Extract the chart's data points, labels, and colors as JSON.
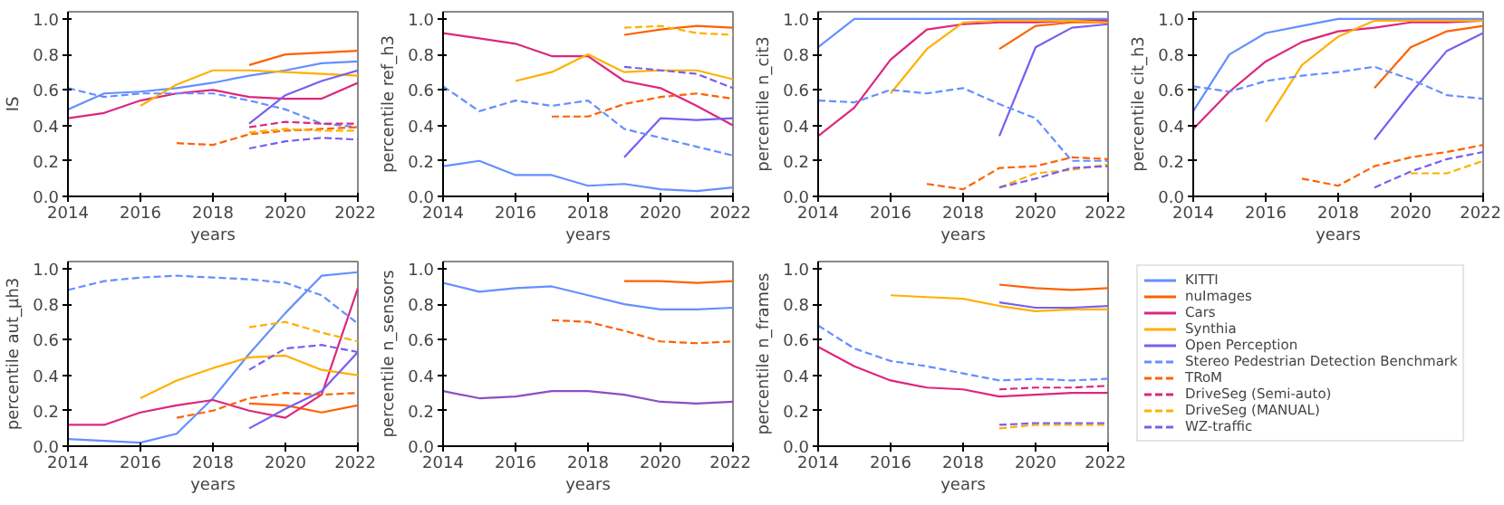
{
  "chart_data": [
    {
      "type": "line",
      "x": [
        2014,
        2015,
        2016,
        2017,
        2018,
        2019,
        2020,
        2021,
        2022
      ],
      "xlim": [
        2014,
        2022
      ],
      "xticks": [
        2014,
        2016,
        2018,
        2020,
        2022
      ],
      "ylim": [
        0,
        1.04
      ],
      "yticks": [
        {
          "value": 0,
          "label": "0.0"
        },
        {
          "value": 0.2,
          "label": "0.2"
        },
        {
          "value": 0.4,
          "label": "0.4"
        },
        {
          "value": 0.6,
          "label": "0.6"
        },
        {
          "value": 0.8,
          "label": "0.8"
        },
        {
          "value": 1,
          "label": "1.0"
        }
      ],
      "xlabel": "years",
      "ylabel": "IS",
      "series": [
        {
          "color": "#648fff",
          "line_style": "solid",
          "values": [
            0.49,
            0.58,
            0.59,
            0.61,
            0.64,
            0.68,
            0.71,
            0.75,
            0.76
          ]
        },
        {
          "color": "#fe6100",
          "line_style": "solid",
          "values": [
            null,
            null,
            null,
            null,
            null,
            0.74,
            0.8,
            0.81,
            0.82
          ]
        },
        {
          "color": "#dc267f",
          "line_style": "solid",
          "values": [
            0.44,
            0.47,
            0.54,
            0.58,
            0.6,
            0.56,
            0.55,
            0.55,
            0.64
          ]
        },
        {
          "color": "#ffb000",
          "line_style": "solid",
          "values": [
            null,
            null,
            0.51,
            0.63,
            0.71,
            0.71,
            0.7,
            0.69,
            0.68
          ]
        },
        {
          "color": "#785ef0",
          "line_style": "solid",
          "values": [
            null,
            null,
            null,
            null,
            null,
            0.41,
            0.57,
            0.65,
            0.71
          ]
        },
        {
          "color": "#648fff",
          "line_style": "dashed",
          "values": [
            0.61,
            0.56,
            0.58,
            0.58,
            0.58,
            0.54,
            0.49,
            0.41,
            0.39
          ]
        },
        {
          "color": "#fe6100",
          "line_style": "dashed",
          "values": [
            null,
            null,
            null,
            0.3,
            0.29,
            0.35,
            0.37,
            0.38,
            0.39
          ]
        },
        {
          "color": "#dc267f",
          "line_style": "dashed",
          "values": [
            null,
            null,
            null,
            null,
            null,
            0.39,
            0.42,
            0.41,
            0.41
          ]
        },
        {
          "color": "#ffb000",
          "line_style": "dashed",
          "values": [
            null,
            null,
            null,
            null,
            null,
            0.36,
            0.38,
            0.37,
            0.37
          ]
        },
        {
          "color": "#785ef0",
          "line_style": "dashed",
          "values": [
            null,
            null,
            null,
            null,
            null,
            0.27,
            0.31,
            0.33,
            0.32
          ]
        }
      ]
    },
    {
      "type": "line",
      "x": [
        2014,
        2015,
        2016,
        2017,
        2018,
        2019,
        2020,
        2021,
        2022
      ],
      "xlim": [
        2014,
        2022
      ],
      "xticks": [
        2014,
        2016,
        2018,
        2020,
        2022
      ],
      "ylim": [
        0,
        1.04
      ],
      "yticks": [
        {
          "value": 0,
          "label": "0.0"
        },
        {
          "value": 0.2,
          "label": "0.2"
        },
        {
          "value": 0.4,
          "label": "0.4"
        },
        {
          "value": 0.6,
          "label": "0.6"
        },
        {
          "value": 0.8,
          "label": "0.8"
        },
        {
          "value": 1,
          "label": "1.0"
        }
      ],
      "xlabel": "years",
      "ylabel": "percentile ref_h3",
      "series": [
        {
          "color": "#648fff",
          "line_style": "solid",
          "values": [
            0.17,
            0.2,
            0.12,
            0.12,
            0.06,
            0.07,
            0.04,
            0.03,
            0.05
          ]
        },
        {
          "color": "#fe6100",
          "line_style": "solid",
          "values": [
            null,
            null,
            null,
            null,
            null,
            0.91,
            0.94,
            0.96,
            0.95
          ]
        },
        {
          "color": "#dc267f",
          "line_style": "solid",
          "values": [
            0.92,
            0.89,
            0.86,
            0.79,
            0.79,
            0.65,
            0.61,
            0.51,
            0.4
          ]
        },
        {
          "color": "#ffb000",
          "line_style": "solid",
          "values": [
            null,
            null,
            0.65,
            0.7,
            0.8,
            0.7,
            0.71,
            0.71,
            0.66
          ]
        },
        {
          "color": "#785ef0",
          "line_style": "solid",
          "values": [
            null,
            null,
            null,
            null,
            null,
            0.22,
            0.44,
            0.43,
            0.44
          ]
        },
        {
          "color": "#648fff",
          "line_style": "dashed",
          "values": [
            0.62,
            0.48,
            0.54,
            0.51,
            0.54,
            0.38,
            0.33,
            0.28,
            0.23
          ]
        },
        {
          "color": "#fe6100",
          "line_style": "dashed",
          "values": [
            null,
            null,
            null,
            0.45,
            0.45,
            0.52,
            0.56,
            0.58,
            0.55
          ]
        },
        {
          "color": "#ffb000",
          "line_style": "dashed",
          "values": [
            null,
            null,
            null,
            null,
            null,
            0.95,
            0.96,
            0.92,
            0.91
          ]
        },
        {
          "color": "#785ef0",
          "line_style": "dashed",
          "values": [
            null,
            null,
            null,
            null,
            null,
            0.73,
            0.71,
            0.69,
            0.61
          ]
        }
      ]
    },
    {
      "type": "line",
      "x": [
        2014,
        2015,
        2016,
        2017,
        2018,
        2019,
        2020,
        2021,
        2022
      ],
      "xlim": [
        2014,
        2022
      ],
      "xticks": [
        2014,
        2016,
        2018,
        2020,
        2022
      ],
      "ylim": [
        0,
        1.04
      ],
      "yticks": [
        {
          "value": 0,
          "label": "0.0"
        },
        {
          "value": 0.2,
          "label": "0.2"
        },
        {
          "value": 0.4,
          "label": "0.4"
        },
        {
          "value": 0.6,
          "label": "0.6"
        },
        {
          "value": 0.8,
          "label": "0.8"
        },
        {
          "value": 1,
          "label": "1.0"
        }
      ],
      "xlabel": "years",
      "ylabel": "percentile n_cit3",
      "series": [
        {
          "color": "#648fff",
          "line_style": "solid",
          "values": [
            0.84,
            1.0,
            1.0,
            1.0,
            1.0,
            1.0,
            1.0,
            1.0,
            1.0
          ]
        },
        {
          "color": "#fe6100",
          "line_style": "solid",
          "values": [
            null,
            null,
            null,
            null,
            null,
            0.83,
            0.96,
            0.98,
            0.98
          ]
        },
        {
          "color": "#dc267f",
          "line_style": "solid",
          "values": [
            0.34,
            0.5,
            0.77,
            0.94,
            0.97,
            0.98,
            0.98,
            0.99,
            0.99
          ]
        },
        {
          "color": "#ffb000",
          "line_style": "solid",
          "values": [
            null,
            null,
            0.58,
            0.83,
            0.98,
            0.99,
            0.99,
            0.99,
            0.98
          ]
        },
        {
          "color": "#785ef0",
          "line_style": "solid",
          "values": [
            null,
            null,
            null,
            null,
            null,
            0.34,
            0.84,
            0.95,
            0.97
          ]
        },
        {
          "color": "#648fff",
          "line_style": "dashed",
          "values": [
            0.54,
            0.53,
            0.6,
            0.58,
            0.61,
            0.52,
            0.44,
            0.2,
            0.2
          ]
        },
        {
          "color": "#fe6100",
          "line_style": "dashed",
          "values": [
            null,
            null,
            null,
            0.07,
            0.04,
            0.16,
            0.17,
            0.22,
            0.21
          ]
        },
        {
          "color": "#ffb000",
          "line_style": "dashed",
          "values": [
            null,
            null,
            null,
            null,
            null,
            0.05,
            0.13,
            0.15,
            0.18
          ]
        },
        {
          "color": "#785ef0",
          "line_style": "dashed",
          "values": [
            null,
            null,
            null,
            null,
            null,
            0.05,
            0.1,
            0.16,
            0.17
          ]
        }
      ]
    },
    {
      "type": "line",
      "x": [
        2014,
        2015,
        2016,
        2017,
        2018,
        2019,
        2020,
        2021,
        2022
      ],
      "xlim": [
        2014,
        2022
      ],
      "xticks": [
        2014,
        2016,
        2018,
        2020,
        2022
      ],
      "ylim": [
        0,
        1.04
      ],
      "yticks": [
        {
          "value": 0,
          "label": "0.0"
        },
        {
          "value": 0.2,
          "label": "0.2"
        },
        {
          "value": 0.4,
          "label": "0.4"
        },
        {
          "value": 0.6,
          "label": "0.6"
        },
        {
          "value": 0.8,
          "label": "0.8"
        },
        {
          "value": 1,
          "label": "1.0"
        }
      ],
      "xlabel": "years",
      "ylabel": "percentile cit_h3",
      "series": [
        {
          "color": "#648fff",
          "line_style": "solid",
          "values": [
            0.48,
            0.8,
            0.92,
            0.96,
            1.0,
            1.0,
            1.0,
            1.0,
            1.0
          ]
        },
        {
          "color": "#fe6100",
          "line_style": "solid",
          "values": [
            null,
            null,
            null,
            null,
            null,
            0.61,
            0.84,
            0.93,
            0.96
          ]
        },
        {
          "color": "#dc267f",
          "line_style": "solid",
          "values": [
            0.38,
            0.59,
            0.76,
            0.87,
            0.93,
            0.95,
            0.98,
            0.98,
            0.99
          ]
        },
        {
          "color": "#ffb000",
          "line_style": "solid",
          "values": [
            null,
            null,
            0.42,
            0.74,
            0.9,
            0.99,
            0.99,
            0.99,
            0.99
          ]
        },
        {
          "color": "#785ef0",
          "line_style": "solid",
          "values": [
            null,
            null,
            null,
            null,
            null,
            0.32,
            0.58,
            0.82,
            0.92
          ]
        },
        {
          "color": "#648fff",
          "line_style": "dashed",
          "values": [
            0.62,
            0.59,
            0.65,
            0.68,
            0.7,
            0.73,
            0.66,
            0.57,
            0.55
          ]
        },
        {
          "color": "#fe6100",
          "line_style": "dashed",
          "values": [
            null,
            null,
            null,
            0.1,
            0.06,
            0.17,
            0.22,
            0.25,
            0.29
          ]
        },
        {
          "color": "#ffb000",
          "line_style": "dashed",
          "values": [
            null,
            null,
            null,
            null,
            null,
            null,
            0.13,
            0.13,
            0.2
          ]
        },
        {
          "color": "#785ef0",
          "line_style": "dashed",
          "values": [
            null,
            null,
            null,
            null,
            null,
            0.05,
            0.14,
            0.21,
            0.25
          ]
        }
      ]
    },
    {
      "type": "line",
      "x": [
        2014,
        2015,
        2016,
        2017,
        2018,
        2019,
        2020,
        2021,
        2022
      ],
      "xlim": [
        2014,
        2022
      ],
      "xticks": [
        2014,
        2016,
        2018,
        2020,
        2022
      ],
      "ylim": [
        0,
        1.04
      ],
      "yticks": [
        {
          "value": 0,
          "label": "0.0"
        },
        {
          "value": 0.2,
          "label": "0.2"
        },
        {
          "value": 0.4,
          "label": "0.4"
        },
        {
          "value": 0.6,
          "label": "0.6"
        },
        {
          "value": 0.8,
          "label": "0.8"
        },
        {
          "value": 1,
          "label": "1.0"
        }
      ],
      "xlabel": "years",
      "ylabel": "percentile aut_μh3",
      "series": [
        {
          "color": "#648fff",
          "line_style": "solid",
          "values": [
            0.04,
            0.03,
            0.02,
            0.07,
            0.27,
            0.52,
            0.75,
            0.96,
            0.98
          ]
        },
        {
          "color": "#fe6100",
          "line_style": "solid",
          "values": [
            null,
            null,
            null,
            null,
            null,
            0.24,
            0.23,
            0.19,
            0.23
          ]
        },
        {
          "color": "#dc267f",
          "line_style": "solid",
          "values": [
            0.12,
            0.12,
            0.19,
            0.23,
            0.26,
            0.2,
            0.16,
            0.29,
            0.89
          ]
        },
        {
          "color": "#ffb000",
          "line_style": "solid",
          "values": [
            null,
            null,
            0.27,
            0.37,
            0.44,
            0.5,
            0.51,
            0.43,
            0.4
          ]
        },
        {
          "color": "#785ef0",
          "line_style": "solid",
          "values": [
            null,
            null,
            null,
            null,
            null,
            0.1,
            0.21,
            0.31,
            0.53
          ]
        },
        {
          "color": "#648fff",
          "line_style": "dashed",
          "values": [
            0.88,
            0.93,
            0.95,
            0.96,
            0.95,
            0.94,
            0.92,
            0.85,
            0.69
          ]
        },
        {
          "color": "#fe6100",
          "line_style": "dashed",
          "values": [
            null,
            null,
            null,
            0.16,
            0.2,
            0.27,
            0.3,
            0.29,
            0.3
          ]
        },
        {
          "color": "#ffb000",
          "line_style": "dashed",
          "values": [
            null,
            null,
            null,
            null,
            null,
            0.67,
            0.7,
            0.64,
            0.59
          ]
        },
        {
          "color": "#785ef0",
          "line_style": "dashed",
          "values": [
            null,
            null,
            null,
            null,
            null,
            0.43,
            0.55,
            0.57,
            0.53
          ]
        }
      ]
    },
    {
      "type": "line",
      "x": [
        2014,
        2015,
        2016,
        2017,
        2018,
        2019,
        2020,
        2021,
        2022
      ],
      "xlim": [
        2014,
        2022
      ],
      "xticks": [
        2014,
        2016,
        2018,
        2020,
        2022
      ],
      "ylim": [
        0,
        1.04
      ],
      "yticks": [
        {
          "value": 0,
          "label": "0.0"
        },
        {
          "value": 0.2,
          "label": "0.2"
        },
        {
          "value": 0.4,
          "label": "0.4"
        },
        {
          "value": 0.6,
          "label": "0.6"
        },
        {
          "value": 0.8,
          "label": "0.8"
        },
        {
          "value": 1,
          "label": "1.0"
        }
      ],
      "xlabel": "years",
      "ylabel": "percentile n_sensors",
      "series": [
        {
          "color": "#648fff",
          "line_style": "solid",
          "values": [
            0.92,
            0.87,
            0.89,
            0.9,
            0.85,
            0.8,
            0.77,
            0.77,
            0.78
          ]
        },
        {
          "color": "#fe6100",
          "line_style": "solid",
          "values": [
            null,
            null,
            null,
            null,
            null,
            0.93,
            0.93,
            0.92,
            0.93
          ]
        },
        {
          "color": "#8a4fc0",
          "line_style": "solid",
          "values": [
            0.31,
            0.27,
            0.28,
            0.31,
            0.31,
            0.29,
            0.25,
            0.24,
            0.25
          ]
        },
        {
          "color": "#fe6100",
          "line_style": "dashed",
          "values": [
            null,
            null,
            null,
            0.71,
            0.7,
            0.65,
            0.59,
            0.58,
            0.59
          ]
        }
      ]
    },
    {
      "type": "line",
      "x": [
        2014,
        2015,
        2016,
        2017,
        2018,
        2019,
        2020,
        2021,
        2022
      ],
      "xlim": [
        2014,
        2022
      ],
      "xticks": [
        2014,
        2016,
        2018,
        2020,
        2022
      ],
      "ylim": [
        0,
        1.04
      ],
      "yticks": [
        {
          "value": 0,
          "label": "0.0"
        },
        {
          "value": 0.2,
          "label": "0.2"
        },
        {
          "value": 0.4,
          "label": "0.4"
        },
        {
          "value": 0.6,
          "label": "0.6"
        },
        {
          "value": 0.8,
          "label": "0.8"
        },
        {
          "value": 1,
          "label": "1.0"
        }
      ],
      "xlabel": "years",
      "ylabel": "percentile n_frames",
      "legend": "right",
      "series": [
        {
          "name": "KITTI",
          "color": "#648fff",
          "line_style": "solid",
          "values": [
            null,
            null,
            null,
            null,
            null,
            null,
            null,
            null,
            null
          ]
        },
        {
          "name": "nuImages",
          "color": "#fe6100",
          "line_style": "solid",
          "values": [
            null,
            null,
            null,
            null,
            null,
            0.91,
            0.89,
            0.88,
            0.89
          ]
        },
        {
          "name": "Cars",
          "color": "#dc267f",
          "line_style": "solid",
          "values": [
            0.56,
            0.45,
            0.37,
            0.33,
            0.32,
            0.28,
            0.29,
            0.3,
            0.3
          ]
        },
        {
          "name": "Synthia",
          "color": "#ffb000",
          "line_style": "solid",
          "values": [
            null,
            null,
            0.85,
            0.84,
            0.83,
            0.79,
            0.76,
            0.77,
            0.77
          ]
        },
        {
          "name": "Open Perception",
          "color": "#785ef0",
          "line_style": "solid",
          "values": [
            null,
            null,
            null,
            null,
            null,
            0.81,
            0.78,
            0.78,
            0.79
          ]
        },
        {
          "name": "Stereo Pedestrian Detection Benchmark",
          "color": "#648fff",
          "line_style": "dashed",
          "values": [
            0.68,
            0.55,
            0.48,
            0.45,
            0.41,
            0.37,
            0.38,
            0.37,
            0.38
          ]
        },
        {
          "name": "TRoM",
          "color": "#fe6100",
          "line_style": "dashed",
          "values": [
            null,
            null,
            null,
            null,
            null,
            null,
            null,
            null,
            null
          ]
        },
        {
          "name": "DriveSeg (Semi-auto)",
          "color": "#dc267f",
          "line_style": "dashed",
          "values": [
            null,
            null,
            null,
            null,
            null,
            0.32,
            0.33,
            0.33,
            0.34
          ]
        },
        {
          "name": "DriveSeg (MANUAL)",
          "color": "#ffb000",
          "line_style": "dashed",
          "values": [
            null,
            null,
            null,
            null,
            null,
            0.1,
            0.12,
            0.12,
            0.12
          ]
        },
        {
          "name": "WZ-traffic",
          "color": "#785ef0",
          "line_style": "dashed",
          "values": [
            null,
            null,
            null,
            null,
            null,
            0.12,
            0.13,
            0.13,
            0.13
          ]
        }
      ]
    }
  ]
}
